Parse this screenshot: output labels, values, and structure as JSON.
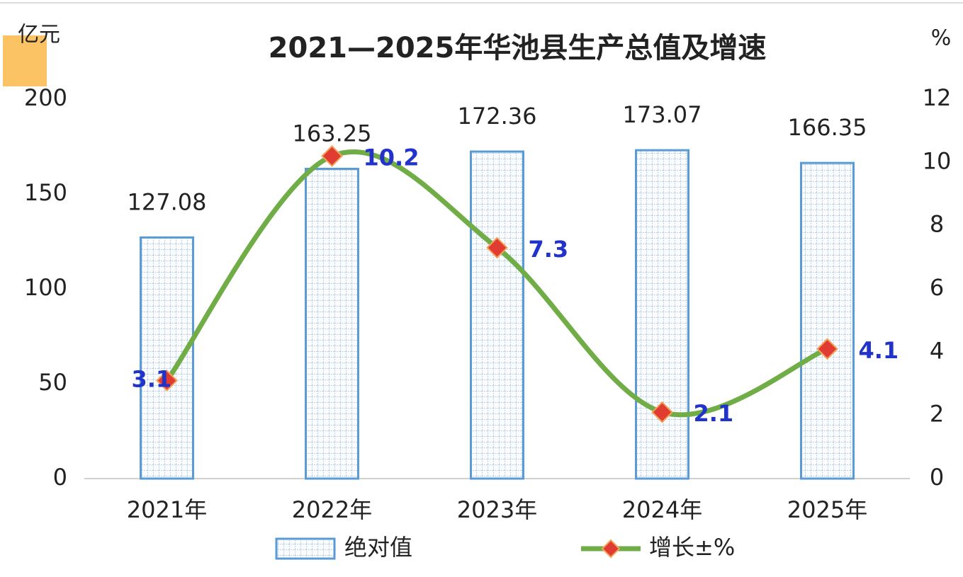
{
  "chart_data": {
    "type": "bar",
    "title": "2021—2025年华池县生产总值及增速",
    "y_label": "亿元",
    "y2_label": "%",
    "categories": [
      "2021年",
      "2022年",
      "2023年",
      "2024年",
      "2025年"
    ],
    "series": [
      {
        "name": "绝对值",
        "type": "bar",
        "color": "#5b9bd5",
        "values": [
          127.08,
          163.25,
          172.36,
          173.07,
          166.35
        ]
      },
      {
        "name": "增长±%",
        "type": "line",
        "axis": "y2",
        "color": "#70ad47",
        "marker_color": "#e03c31",
        "label_color": "#2233cc",
        "values": [
          3.1,
          10.2,
          7.3,
          2.1,
          4.1
        ]
      }
    ],
    "ylim": [
      0,
      200
    ],
    "yticks": [
      0,
      50,
      100,
      150,
      200
    ],
    "y2lim": [
      0,
      12
    ],
    "y2ticks": [
      0,
      2,
      4,
      6,
      8,
      10,
      12
    ],
    "grid": false,
    "legend": "bottom"
  }
}
